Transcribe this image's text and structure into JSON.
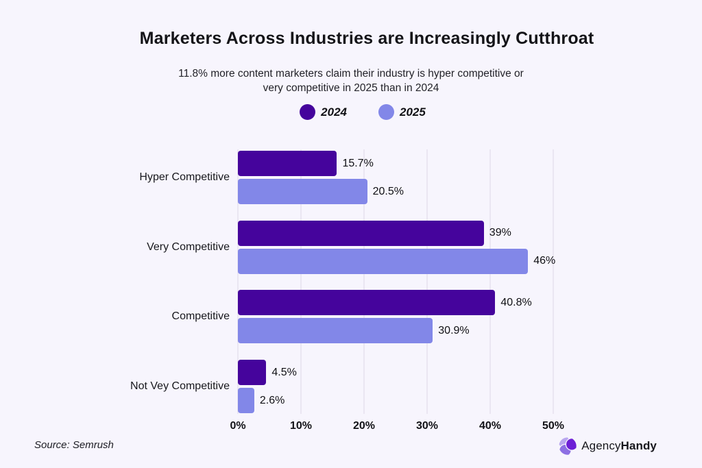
{
  "header": {
    "title": "Marketers Across Industries are Increasingly Cutthroat",
    "subtitle_line1": "11.8% more content marketers claim their industry is hyper competitive or",
    "subtitle_line2": "very competitive in 2025 than in 2024"
  },
  "legend": {
    "items": [
      {
        "label": "2024",
        "color": "#45049c"
      },
      {
        "label": "2025",
        "color": "#8287e8"
      }
    ]
  },
  "chart_data": {
    "type": "bar",
    "orientation": "horizontal",
    "title": "Marketers Across Industries are Increasingly Cutthroat",
    "subtitle": "11.8% more content marketers claim their industry is hyper competitive or very competitive in 2025 than in 2024",
    "categories": [
      "Hyper Competitive",
      "Very Competitive",
      "Competitive",
      "Not Vey Competitive"
    ],
    "series": [
      {
        "name": "2024",
        "color": "#45049c",
        "values": [
          15.7,
          39,
          40.8,
          4.5
        ],
        "labels": [
          "15.7%",
          "39%",
          "40.8%",
          "4.5%"
        ]
      },
      {
        "name": "2025",
        "color": "#8287e8",
        "values": [
          20.5,
          46,
          30.9,
          2.6
        ],
        "labels": [
          "20.5%",
          "46%",
          "30.9%",
          "2.6%"
        ]
      }
    ],
    "xlabel": "",
    "ylabel": "",
    "xlim": [
      0,
      50
    ],
    "xtick_values": [
      0,
      10,
      20,
      30,
      40,
      50
    ],
    "xticks": [
      "0%",
      "10%",
      "20%",
      "30%",
      "40%",
      "50%"
    ],
    "grid": "vertical gridlines on",
    "legend_position": "top center",
    "value_labels": "outside end of bars"
  },
  "footer": {
    "source": "Source: Semrush",
    "logo_regular": "Agency",
    "logo_bold": "Handy"
  },
  "colors": {
    "background": "#f7f5fd",
    "series_2024": "#45049c",
    "series_2025": "#8287e8",
    "gridline": "#dcd7e8",
    "text": "#16161a"
  }
}
